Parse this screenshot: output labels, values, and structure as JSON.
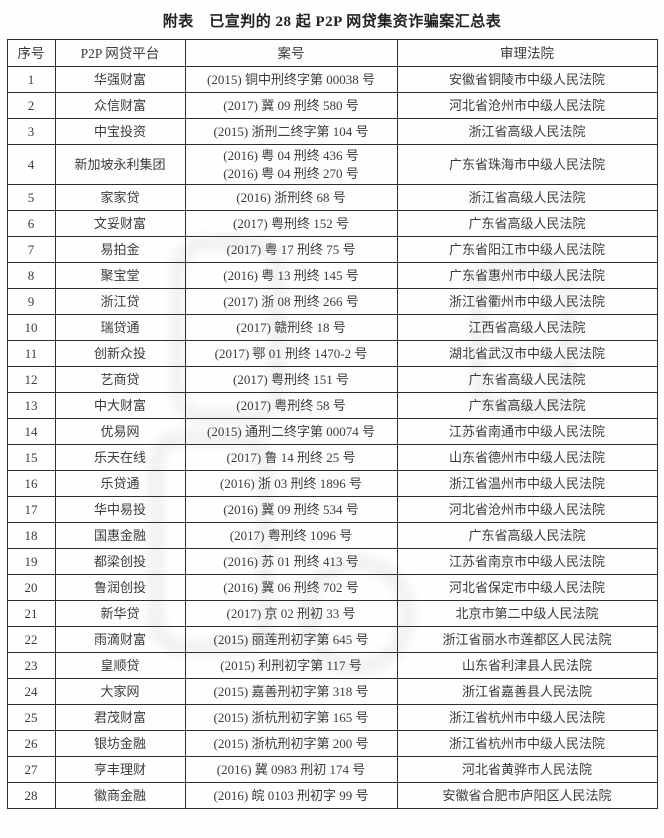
{
  "page": {
    "title": "附表　已宣判的 28 起 P2P 网贷集资诈骗案汇总表"
  },
  "colors": {
    "background": "#fefefe",
    "text": "#3b3b3b",
    "title_text": "#222222",
    "grid_border": "#2e2e2e",
    "watermark": "#efefef"
  },
  "table": {
    "headers": [
      "序号",
      "P2P 网贷平台",
      "案号",
      "审理法院"
    ],
    "rows": [
      {
        "no": "1",
        "platform": "华强财富",
        "cases": [
          "(2015) 铜中刑终字第 00038 号"
        ],
        "court": "安徽省铜陵市中级人民法院"
      },
      {
        "no": "2",
        "platform": "众信财富",
        "cases": [
          "(2017) 冀 09 刑终 580 号"
        ],
        "court": "河北省沧州市中级人民法院"
      },
      {
        "no": "3",
        "platform": "中宝投资",
        "cases": [
          "(2015) 浙刑二终字第 104 号"
        ],
        "court": "浙江省高级人民法院"
      },
      {
        "no": "4",
        "platform": "新加坡永利集团",
        "cases": [
          "(2016) 粤 04 刑终 436 号",
          "(2016) 粤 04 刑终 270 号"
        ],
        "court": "广东省珠海市中级人民法院"
      },
      {
        "no": "5",
        "platform": "家家贷",
        "cases": [
          "(2016) 浙刑终 68 号"
        ],
        "court": "浙江省高级人民法院"
      },
      {
        "no": "6",
        "platform": "文妥财富",
        "cases": [
          "(2017) 粤刑终 152 号"
        ],
        "court": "广东省高级人民法院"
      },
      {
        "no": "7",
        "platform": "易拍金",
        "cases": [
          "(2017) 粤 17 刑终 75 号"
        ],
        "court": "广东省阳江市中级人民法院"
      },
      {
        "no": "8",
        "platform": "聚宝堂",
        "cases": [
          "(2016) 粤 13 刑终 145 号"
        ],
        "court": "广东省惠州市中级人民法院"
      },
      {
        "no": "9",
        "platform": "浙江贷",
        "cases": [
          "(2017) 浙 08 刑终 266 号"
        ],
        "court": "浙江省衢州市中级人民法院"
      },
      {
        "no": "10",
        "platform": "瑞贷通",
        "cases": [
          "(2017) 赣刑终 18 号"
        ],
        "court": "江西省高级人民法院"
      },
      {
        "no": "11",
        "platform": "创新众投",
        "cases": [
          "(2017) 鄂 01 刑终 1470-2 号"
        ],
        "court": "湖北省武汉市中级人民法院"
      },
      {
        "no": "12",
        "platform": "艺商贷",
        "cases": [
          "(2017) 粤刑终 151 号"
        ],
        "court": "广东省高级人民法院"
      },
      {
        "no": "13",
        "platform": "中大财富",
        "cases": [
          "(2017) 粤刑终 58 号"
        ],
        "court": "广东省高级人民法院"
      },
      {
        "no": "14",
        "platform": "优易网",
        "cases": [
          "(2015) 通刑二终字第 00074 号"
        ],
        "court": "江苏省南通市中级人民法院"
      },
      {
        "no": "15",
        "platform": "乐天在线",
        "cases": [
          "(2017) 鲁 14 刑终 25 号"
        ],
        "court": "山东省德州市中级人民法院"
      },
      {
        "no": "16",
        "platform": "乐贷通",
        "cases": [
          "(2016) 浙 03 刑终 1896 号"
        ],
        "court": "浙江省温州市中级人民法院"
      },
      {
        "no": "17",
        "platform": "华中易投",
        "cases": [
          "(2016) 冀 09 刑终 534 号"
        ],
        "court": "河北省沧州市中级人民法院"
      },
      {
        "no": "18",
        "platform": "国惠金融",
        "cases": [
          "(2017) 粤刑终 1096 号"
        ],
        "court": "广东省高级人民法院"
      },
      {
        "no": "19",
        "platform": "都梁创投",
        "cases": [
          "(2016) 苏 01 刑终 413 号"
        ],
        "court": "江苏省南京市中级人民法院"
      },
      {
        "no": "20",
        "platform": "鲁润创投",
        "cases": [
          "(2016) 冀 06 刑终 702 号"
        ],
        "court": "河北省保定市中级人民法院"
      },
      {
        "no": "21",
        "platform": "新华贷",
        "cases": [
          "(2017) 京 02 刑初 33 号"
        ],
        "court": "北京市第二中级人民法院"
      },
      {
        "no": "22",
        "platform": "雨滴财富",
        "cases": [
          "(2015) 丽莲刑初字第 645 号"
        ],
        "court": "浙江省丽水市莲都区人民法院"
      },
      {
        "no": "23",
        "platform": "皇顺贷",
        "cases": [
          "(2015) 利刑初字第 117 号"
        ],
        "court": "山东省利津县人民法院"
      },
      {
        "no": "24",
        "platform": "大家网",
        "cases": [
          "(2015) 嘉善刑初字第 318 号"
        ],
        "court": "浙江省嘉善县人民法院"
      },
      {
        "no": "25",
        "platform": "君茂财富",
        "cases": [
          "(2015) 浙杭刑初字第 165 号"
        ],
        "court": "浙江省杭州市中级人民法院"
      },
      {
        "no": "26",
        "platform": "银坊金融",
        "cases": [
          "(2015) 浙杭刑初字第 200 号"
        ],
        "court": "浙江省杭州市中级人民法院"
      },
      {
        "no": "27",
        "platform": "亨丰理财",
        "cases": [
          "(2016) 冀 0983 刑初 174 号"
        ],
        "court": "河北省黄骅市人民法院"
      },
      {
        "no": "28",
        "platform": "徽商金融",
        "cases": [
          "(2016) 皖 0103 刑初字 99 号"
        ],
        "court": "安徽省合肥市庐阳区人民法院"
      }
    ]
  }
}
